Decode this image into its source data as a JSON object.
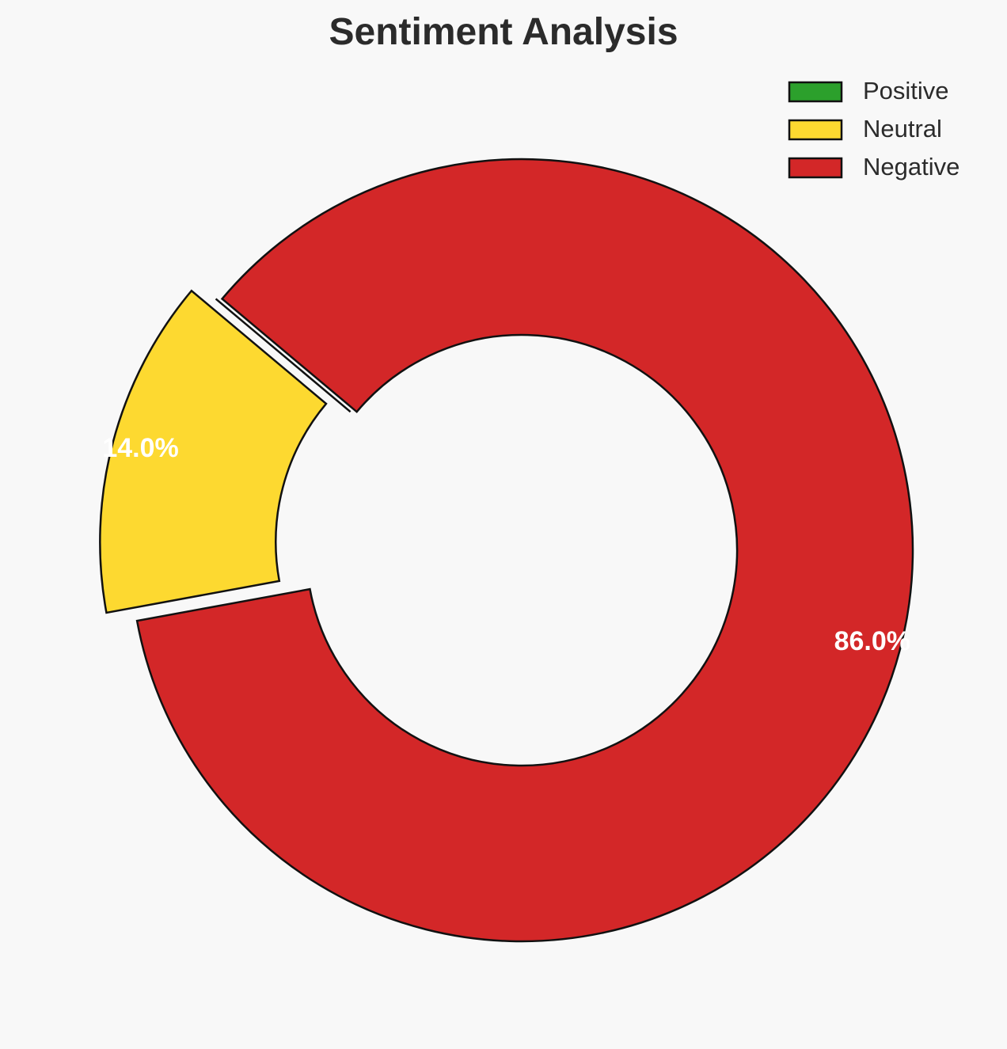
{
  "chart_data": {
    "type": "pie",
    "style": "donut",
    "title": "Sentiment Analysis",
    "legend_placement": "top-right",
    "slices": [
      {
        "name": "Positive",
        "value": 0.0,
        "label": "",
        "color": "#2ca02c",
        "exploded": false
      },
      {
        "name": "Neutral",
        "value": 14.0,
        "label": "14.0%",
        "color": "#fdd930",
        "exploded": true
      },
      {
        "name": "Negative",
        "value": 86.0,
        "label": "86.0%",
        "color": "#d32728",
        "exploded": false
      }
    ]
  }
}
